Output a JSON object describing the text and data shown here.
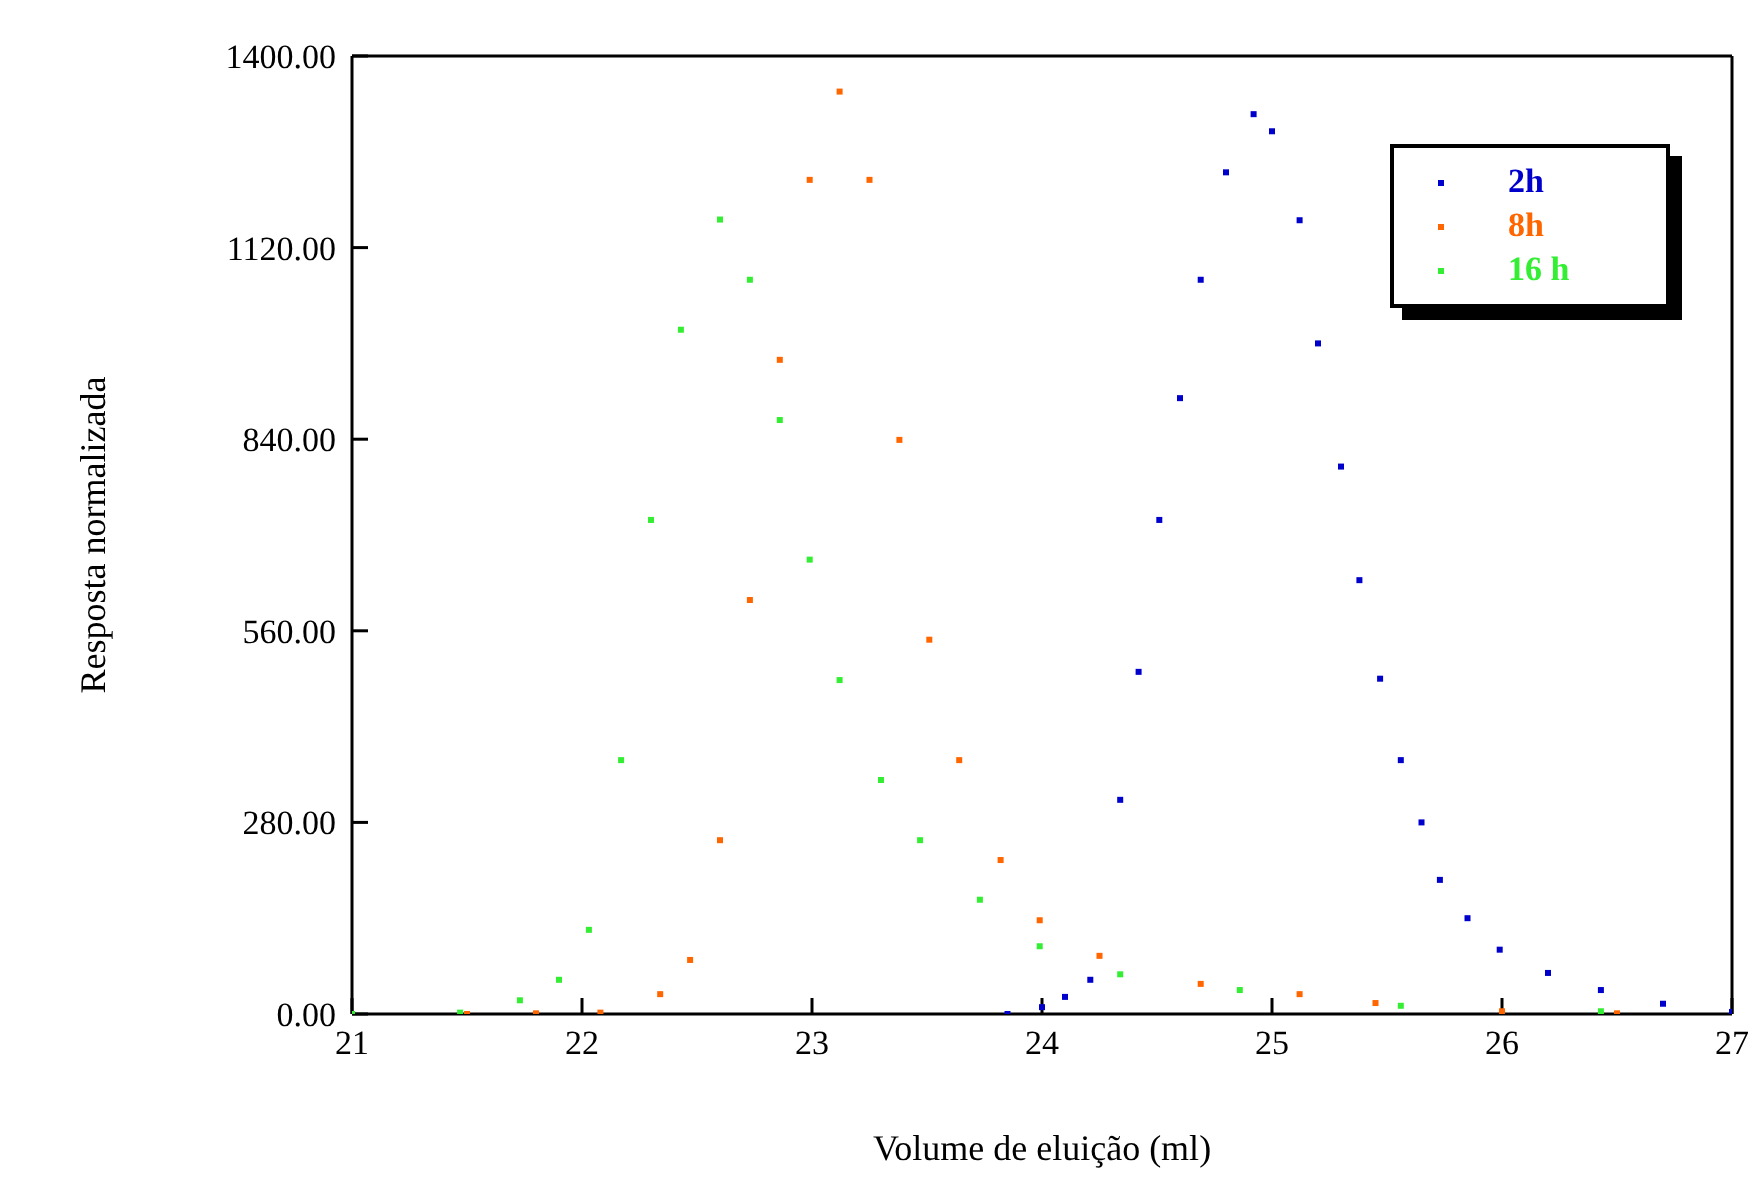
{
  "chart_data": {
    "type": "scatter",
    "xlabel": "Volume de eluição (ml)",
    "ylabel": "Resposta normalizada",
    "xlim": [
      21,
      27
    ],
    "xticks": [
      21,
      22,
      23,
      24,
      25,
      26,
      27
    ],
    "ylim": [
      0,
      1400
    ],
    "yticks": [
      {
        "value": 0,
        "label": "0.00"
      },
      {
        "value": 280,
        "label": "280.00"
      },
      {
        "value": 560,
        "label": "560.00"
      },
      {
        "value": 840,
        "label": "840.00"
      },
      {
        "value": 1120,
        "label": "1120.00"
      },
      {
        "value": 1400,
        "label": "1400.00"
      }
    ],
    "legend": "top right",
    "marker": "square",
    "series": [
      {
        "name": "2h",
        "color": "#0000cc",
        "x": [
          23.85,
          24.0,
          24.1,
          24.21,
          24.34,
          24.42,
          24.51,
          24.6,
          24.69,
          24.8,
          24.92,
          25.0,
          25.12,
          25.2,
          25.3,
          25.38,
          25.47,
          25.56,
          25.65,
          25.73,
          25.85,
          25.99,
          26.2,
          26.43,
          26.7,
          27.0
        ],
        "values": [
          0,
          10,
          25,
          50,
          313,
          500,
          722,
          900,
          1073,
          1230,
          1315,
          1290,
          1160,
          980,
          800,
          634,
          490,
          371,
          280,
          196,
          140,
          94,
          60,
          35,
          15,
          3
        ]
      },
      {
        "name": "8h",
        "color": "#ff6600",
        "x": [
          21.5,
          21.8,
          22.08,
          22.34,
          22.47,
          22.6,
          22.73,
          22.86,
          22.99,
          23.12,
          23.25,
          23.38,
          23.51,
          23.64,
          23.82,
          23.99,
          24.25,
          24.69,
          25.12,
          25.45,
          26.0,
          26.5
        ],
        "values": [
          0,
          1,
          2,
          29,
          79,
          254,
          605,
          956,
          1219,
          1348,
          1219,
          839,
          547,
          371,
          225,
          137,
          85,
          44,
          29,
          16,
          4,
          1
        ]
      },
      {
        "name": "16 h",
        "color": "#33ee33",
        "x": [
          21.0,
          21.47,
          21.73,
          21.9,
          22.03,
          22.17,
          22.3,
          22.43,
          22.6,
          22.73,
          22.86,
          22.99,
          23.12,
          23.3,
          23.47,
          23.73,
          23.99,
          24.34,
          24.86,
          25.56,
          26.43
        ],
        "values": [
          0,
          2,
          20,
          50,
          123,
          371,
          722,
          1000,
          1161,
          1073,
          868,
          664,
          488,
          342,
          254,
          167,
          99,
          58,
          35,
          12,
          4
        ]
      }
    ]
  }
}
